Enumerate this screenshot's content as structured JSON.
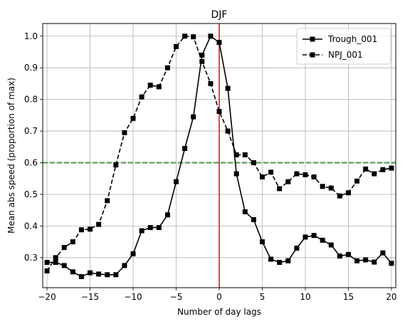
{
  "chart_data": {
    "type": "line",
    "title": "DJF",
    "xlabel": "Number of day lags",
    "ylabel": "Mean abs speed (proportion of max)",
    "xlim": [
      -20.5,
      20.5
    ],
    "ylim": [
      0.205,
      1.04
    ],
    "xticks": [
      -20,
      -15,
      -10,
      -5,
      0,
      5,
      10,
      15,
      20
    ],
    "xtick_labels": [
      "−20",
      "−15",
      "−10",
      "−5",
      "0",
      "5",
      "10",
      "15",
      "20"
    ],
    "yticks": [
      0.3,
      0.4,
      0.5,
      0.6,
      0.7,
      0.8,
      0.9,
      1.0
    ],
    "ytick_labels": [
      "0.3",
      "0.4",
      "0.5",
      "0.6",
      "0.7",
      "0.8",
      "0.9",
      "1.0"
    ],
    "grid": true,
    "legend_position": "top-right",
    "x": [
      -20,
      -19,
      -18,
      -17,
      -16,
      -15,
      -14,
      -13,
      -12,
      -11,
      -10,
      -9,
      -8,
      -7,
      -6,
      -5,
      -4,
      -3,
      -2,
      -1,
      0,
      1,
      2,
      3,
      4,
      5,
      6,
      7,
      8,
      9,
      10,
      11,
      12,
      13,
      14,
      15,
      16,
      17,
      18,
      19,
      20
    ],
    "series": [
      {
        "name": "Trough_001",
        "style": "solid",
        "color": "#000000",
        "values": [
          0.285,
          0.285,
          0.275,
          0.255,
          0.24,
          0.252,
          0.248,
          0.246,
          0.246,
          0.275,
          0.312,
          0.385,
          0.395,
          0.395,
          0.435,
          0.54,
          0.645,
          0.745,
          0.94,
          1.0,
          0.98,
          0.835,
          0.565,
          0.445,
          0.42,
          0.35,
          0.295,
          0.285,
          0.29,
          0.33,
          0.365,
          0.37,
          0.355,
          0.34,
          0.305,
          0.31,
          0.29,
          0.293,
          0.286,
          0.315,
          0.282
        ]
      },
      {
        "name": "NPJ_001",
        "style": "dashed",
        "color": "#000000",
        "values": [
          0.258,
          0.3,
          0.332,
          0.35,
          0.388,
          0.39,
          0.405,
          0.48,
          0.593,
          0.695,
          0.74,
          0.808,
          0.845,
          0.84,
          0.9,
          0.967,
          1.0,
          0.998,
          0.92,
          0.85,
          0.762,
          0.7,
          0.625,
          0.625,
          0.6,
          0.555,
          0.57,
          0.518,
          0.54,
          0.565,
          0.562,
          0.555,
          0.525,
          0.52,
          0.495,
          0.505,
          0.542,
          0.58,
          0.565,
          0.578,
          0.583
        ]
      }
    ],
    "reference_lines": [
      {
        "orientation": "vertical",
        "value": 0,
        "color": "#e84444",
        "style": "solid"
      },
      {
        "orientation": "horizontal",
        "value": 0.6,
        "color": "#5ba05b",
        "style": "dashed"
      }
    ]
  }
}
